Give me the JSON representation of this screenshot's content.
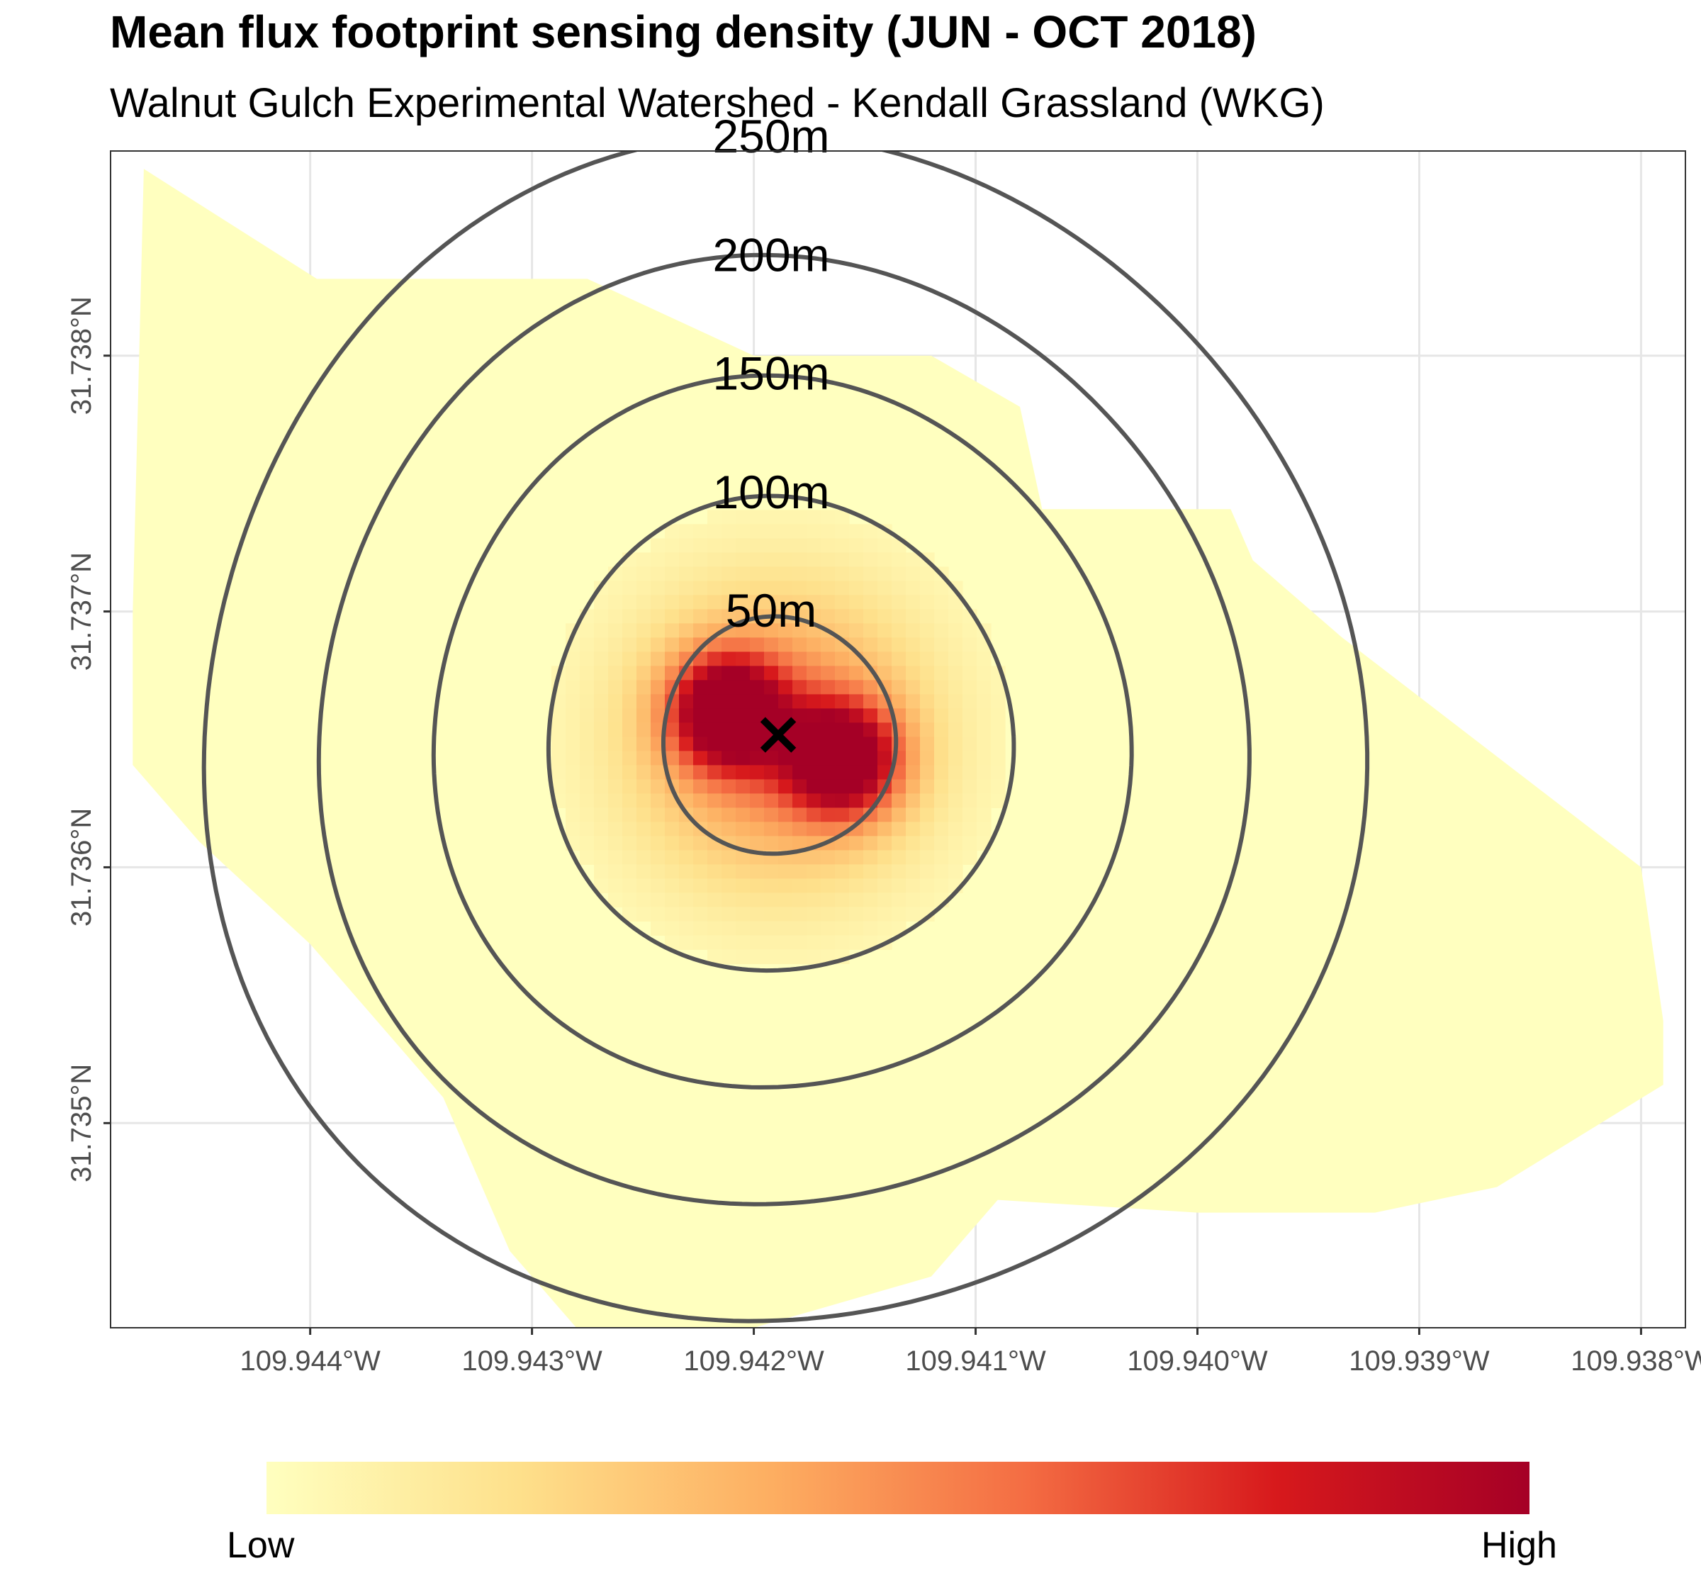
{
  "title": "Mean flux footprint sensing density (JUN - OCT 2018)",
  "subtitle": "Walnut Gulch Experimental Watershed - Kendall Grassland (WKG)",
  "chart_data": {
    "type": "heatmap",
    "title": "Mean flux footprint sensing density (JUN - OCT 2018)",
    "subtitle": "Walnut Gulch Experimental Watershed - Kendall Grassland (WKG)",
    "xlim": [
      -109.9449,
      -109.9378
    ],
    "ylim": [
      31.7342,
      31.7388
    ],
    "x_ticks": [
      -109.944,
      -109.943,
      -109.942,
      -109.941,
      -109.94,
      -109.939,
      -109.938
    ],
    "x_tick_labels": [
      "109.944°W",
      "109.943°W",
      "109.942°W",
      "109.941°W",
      "109.940°W",
      "109.939°W",
      "109.938°W"
    ],
    "y_ticks": [
      31.735,
      31.736,
      31.737,
      31.738
    ],
    "y_tick_labels": [
      "31.735°N",
      "31.736°N",
      "31.737°N",
      "31.738°N"
    ],
    "grid": true,
    "tower": {
      "lon": -109.94189,
      "lat": 31.73651,
      "marker": "×"
    },
    "density_peaks": [
      {
        "lon": -109.94212,
        "lat": 31.73661,
        "relative_density": 1.0
      },
      {
        "lon": -109.9416,
        "lat": 31.73642,
        "relative_density": 0.97
      }
    ],
    "radius_contours": [
      {
        "label": "50m",
        "radius_m": 50
      },
      {
        "label": "100m",
        "radius_m": 100
      },
      {
        "label": "150m",
        "radius_m": 150
      },
      {
        "label": "200m",
        "radius_m": 200
      },
      {
        "label": "250m",
        "radius_m": 250
      }
    ],
    "legend": {
      "type": "colorbar",
      "position": "bottom",
      "low_label": "Low",
      "high_label": "High",
      "colors": [
        "#ffffbf",
        "#fee08b",
        "#fdae61",
        "#f46d43",
        "#d7191c",
        "#a50026"
      ]
    },
    "contour_color": "#555555",
    "background_color": "#ffffff",
    "grid_color": "#e6e6e6"
  }
}
